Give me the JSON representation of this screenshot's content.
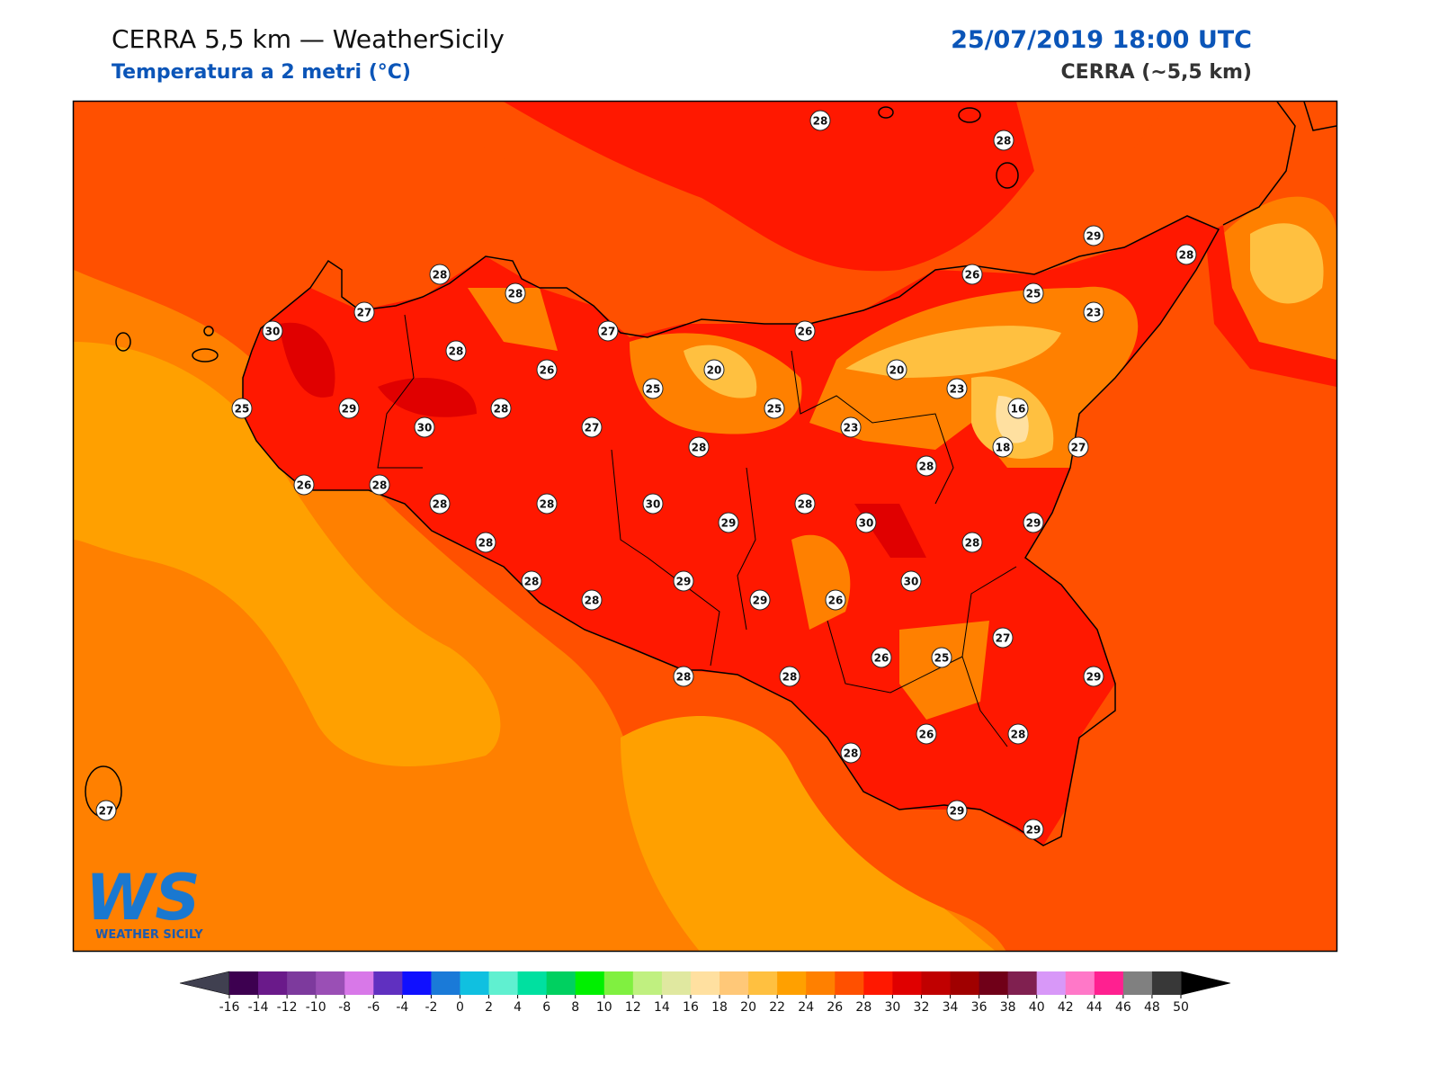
{
  "header": {
    "title": "CERRA 5,5 km — WeatherSicily",
    "subtitle": "Temperatura a 2 metri (°C)",
    "datetime": "25/07/2019 18:00 UTC",
    "model": "CERRA (~5,5 km)"
  },
  "logo": {
    "mark": "WS",
    "text": "WEATHER SICILY"
  },
  "stations": [
    28,
    28,
    29,
    28,
    28,
    28,
    26,
    25,
    23,
    27,
    30,
    27,
    26,
    28,
    26,
    20,
    20,
    25,
    23,
    25,
    29,
    28,
    25,
    16,
    30,
    27,
    23,
    28,
    18,
    27,
    28,
    26,
    28,
    28,
    28,
    30,
    28,
    29,
    30,
    29,
    28,
    28,
    30,
    28,
    29,
    29,
    26,
    28,
    27,
    26,
    25,
    28,
    28,
    29,
    26,
    28,
    28,
    29,
    29,
    27
  ],
  "colorbar": {
    "levels": [
      -16,
      -14,
      -12,
      -10,
      -8,
      -6,
      -4,
      -2,
      0,
      2,
      4,
      6,
      8,
      10,
      12,
      14,
      16,
      18,
      20,
      22,
      24,
      26,
      28,
      30,
      32,
      34,
      36,
      38,
      40,
      42,
      44,
      46,
      48,
      50
    ],
    "colors": [
      "#3d0050",
      "#6a1a8a",
      "#7d3a9d",
      "#9a4fb5",
      "#d878e8",
      "#6030c0",
      "#1010ff",
      "#1a7ad8",
      "#10c0e0",
      "#60f0d0",
      "#00e0a0",
      "#00d060",
      "#00f000",
      "#80f040",
      "#c0f080",
      "#e0e8a0",
      "#ffe0a0",
      "#ffc878",
      "#ffc040",
      "#ffa000",
      "#ff8000",
      "#ff5000",
      "#ff1800",
      "#e00000",
      "#c00000",
      "#a00000",
      "#700018",
      "#802050",
      "#d898f8",
      "#ff78c8",
      "#ff2090",
      "#808080",
      "#383838"
    ],
    "under_color": "#404050",
    "over_color": "#000000"
  }
}
